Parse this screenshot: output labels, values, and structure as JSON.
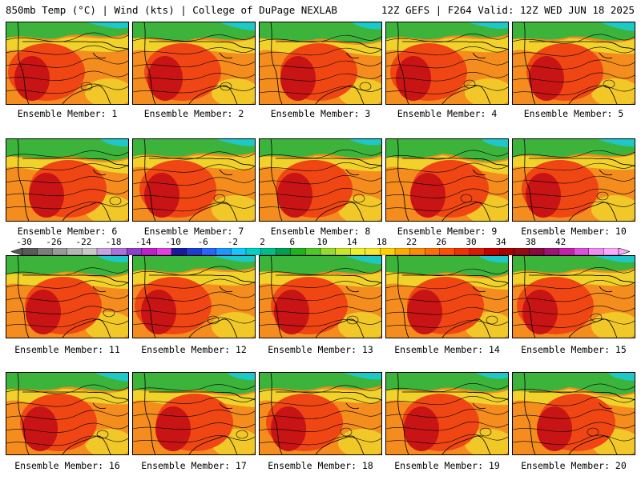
{
  "header": {
    "left": "850mb Temp (°C) | Wind (kts) | College of DuPage NEXLAB",
    "right": "12Z GEFS | F264 Valid: 12Z WED JUN 18 2025"
  },
  "members": [
    "Ensemble Member: 1",
    "Ensemble Member: 2",
    "Ensemble Member: 3",
    "Ensemble Member: 4",
    "Ensemble Member: 5",
    "Ensemble Member: 6",
    "Ensemble Member: 7",
    "Ensemble Member: 8",
    "Ensemble Member: 9",
    "Ensemble Member: 10",
    "Ensemble Member: 11",
    "Ensemble Member: 12",
    "Ensemble Member: 13",
    "Ensemble Member: 14",
    "Ensemble Member: 15",
    "Ensemble Member: 16",
    "Ensemble Member: 17",
    "Ensemble Member: 18",
    "Ensemble Member: 19",
    "Ensemble Member: 20"
  ],
  "colorbar": {
    "labels": [
      "-30",
      "-26",
      "-22",
      "-18",
      "-14",
      "-10",
      "-6",
      "-2",
      "2",
      "6",
      "10",
      "14",
      "18",
      "22",
      "26",
      "30",
      "34",
      "38",
      "42"
    ],
    "colors": [
      "#5a5a5a",
      "#7d7d7d",
      "#9a9a9a",
      "#b5b5b5",
      "#c8c8c8",
      "#c8a0e6",
      "#b070dc",
      "#9040c8",
      "#c020c8",
      "#e040e0",
      "#1a1aa0",
      "#1e3cd2",
      "#2864ff",
      "#1e96ff",
      "#14c8ff",
      "#00d2c8",
      "#00be8c",
      "#00a050",
      "#1eb41e",
      "#50c828",
      "#96dc28",
      "#c8e628",
      "#f0f028",
      "#fae632",
      "#ffd200",
      "#ffaa00",
      "#ff8c00",
      "#ff6e00",
      "#ff5000",
      "#f03200",
      "#dc1e00",
      "#c80000",
      "#aa0000",
      "#960a14",
      "#8c0a3c",
      "#a01478",
      "#c81eaa",
      "#dc50dc",
      "#f08cf0",
      "#faaafa"
    ]
  },
  "map_colors": {
    "hot": "#c81414",
    "warm": "#f04614",
    "orange": "#f58c1e",
    "yellow": "#f0d22a",
    "green": "#3cb43c",
    "teal": "#1ec8c8"
  }
}
